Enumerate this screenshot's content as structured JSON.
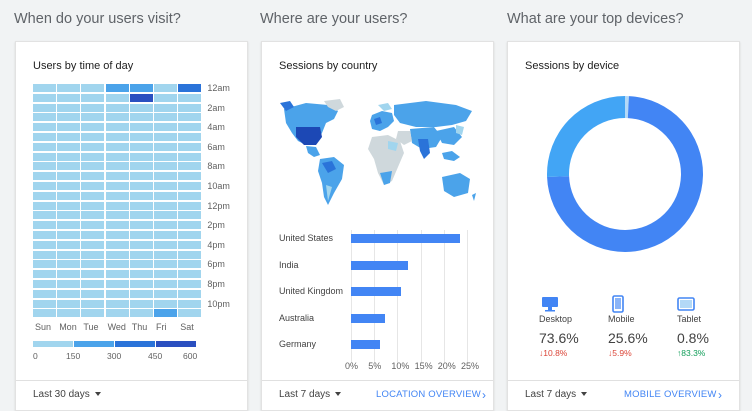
{
  "sections": {
    "visit_title": "When do your users visit?",
    "where_title": "Where are your users?",
    "devices_title": "What are your top devices?"
  },
  "time_card": {
    "title": "Users by time of day",
    "range": "Last 30 days",
    "hours": [
      "12am",
      "2am",
      "4am",
      "6am",
      "8am",
      "10am",
      "12pm",
      "2pm",
      "4pm",
      "6pm",
      "8pm",
      "10pm"
    ],
    "days": [
      "Sun",
      "Mon",
      "Tue",
      "Wed",
      "Thu",
      "Fri",
      "Sat"
    ],
    "legend": [
      "0",
      "150",
      "300",
      "450",
      "600"
    ],
    "colors": [
      "#a1d5ee",
      "#4ba3ea",
      "#2a73d9",
      "#2a4fc0"
    ],
    "highlights": [
      {
        "day": 3,
        "hour": 0,
        "level": 1
      },
      {
        "day": 4,
        "hour": 0,
        "level": 1
      },
      {
        "day": 6,
        "hour": 0,
        "level": 2
      },
      {
        "day": 4,
        "hour": 1,
        "level": 3
      },
      {
        "day": 5,
        "hour": 23,
        "level": 1
      }
    ]
  },
  "country_card": {
    "title": "Sessions by country",
    "range": "Last 7 days",
    "link": "LOCATION OVERVIEW",
    "chart_data": {
      "type": "bar",
      "categories": [
        "United States",
        "India",
        "United Kingdom",
        "Australia",
        "Germany"
      ],
      "values": [
        23.5,
        12.3,
        10.8,
        7.3,
        6.3
      ],
      "xlim": [
        0,
        25
      ],
      "xticks": [
        "0%",
        "5%",
        "10%",
        "15%",
        "20%",
        "25%"
      ]
    }
  },
  "device_card": {
    "title": "Sessions by device",
    "range": "Last 7 days",
    "link": "MOBILE OVERVIEW",
    "chart_data": {
      "type": "pie",
      "categories": [
        "Desktop",
        "Mobile",
        "Tablet"
      ],
      "values": [
        73.6,
        25.6,
        0.8
      ],
      "colors": [
        "#4285f4",
        "#42a5f5",
        "#b3d9f7"
      ]
    },
    "devices": [
      {
        "name": "Desktop",
        "value": "73.6%",
        "change": "10.8%",
        "direction": "down"
      },
      {
        "name": "Mobile",
        "value": "25.6%",
        "change": "5.9%",
        "direction": "down"
      },
      {
        "name": "Tablet",
        "value": "0.8%",
        "change": "83.3%",
        "direction": "up"
      }
    ]
  }
}
